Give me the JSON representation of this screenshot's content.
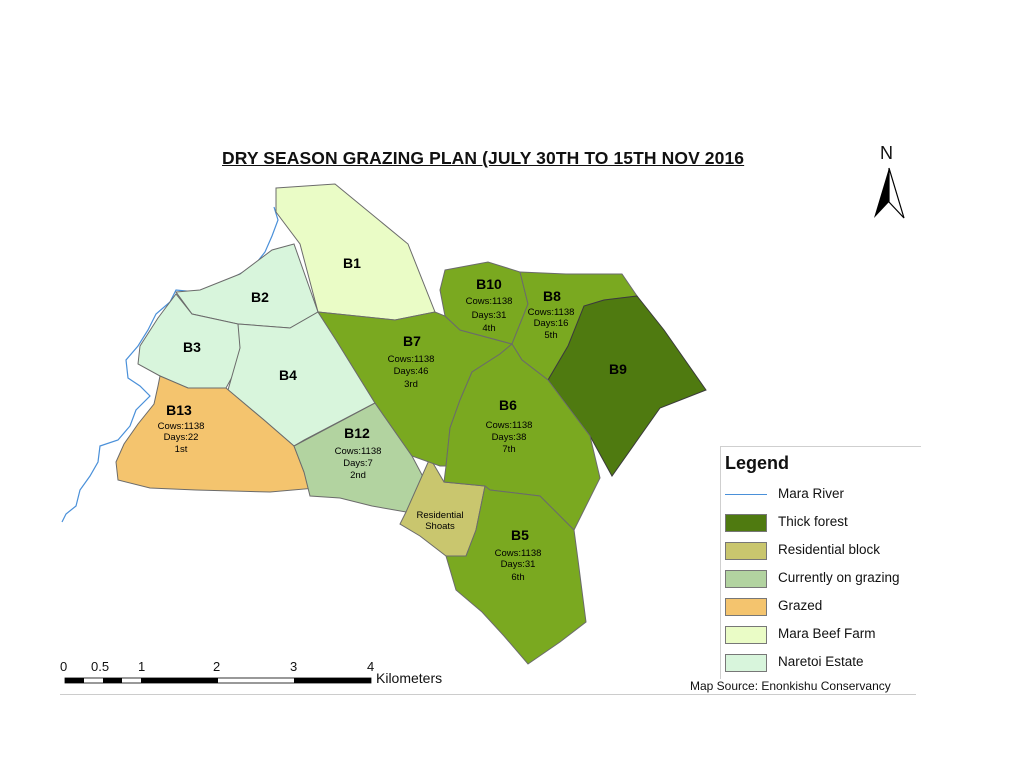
{
  "map": {
    "title": "DRY SEASON GRAZING PLAN (JULY 30TH TO 15TH NOV 2016",
    "north_label": "N",
    "blocks": [
      {
        "code": "B1",
        "category": "Mara Beef Farm"
      },
      {
        "code": "B2",
        "category": "Naretoi Estate"
      },
      {
        "code": "B3",
        "category": "Naretoi Estate"
      },
      {
        "code": "B4",
        "category": "Naretoi Estate"
      },
      {
        "code": "B5",
        "cows": "Cows:1138",
        "days": "Days:31",
        "order": "6th"
      },
      {
        "code": "B6",
        "cows": "Cows:1138",
        "days": "Days:38",
        "order": "7th"
      },
      {
        "code": "B7",
        "cows": "Cows:1138",
        "days": "Days:46",
        "order": "3rd"
      },
      {
        "code": "B8",
        "cows": "Cows:1138",
        "days": "Days:16",
        "order": "5th"
      },
      {
        "code": "B9",
        "category": "Thick forest"
      },
      {
        "code": "B10",
        "cows": "Cows:1138",
        "days": "Days:31",
        "order": "4th"
      },
      {
        "code": "B12",
        "cows": "Cows:1138",
        "days": "Days:7",
        "order": "2nd",
        "category": "Currently on grazing"
      },
      {
        "code": "B13",
        "cows": "Cows:1138",
        "days": "Days:22",
        "order": "1st",
        "category": "Grazed"
      }
    ],
    "residential": {
      "line1": "Residential",
      "line2": "Shoats"
    }
  },
  "legend": {
    "title": "Legend",
    "items": [
      {
        "label": "Mara River",
        "kind": "line",
        "color": "#4a90d9"
      },
      {
        "label": "Thick forest",
        "kind": "fill",
        "color": "#4f7a10"
      },
      {
        "label": "Residential block",
        "kind": "fill",
        "color": "#c9c66e"
      },
      {
        "label": "Currently on grazing",
        "kind": "fill",
        "color": "#b2d3a0"
      },
      {
        "label": "Grazed",
        "kind": "fill",
        "color": "#f4c46e"
      },
      {
        "label": "Mara Beef Farm",
        "kind": "fill",
        "color": "#eafcc6"
      },
      {
        "label": "Naretoi Estate",
        "kind": "fill",
        "color": "#d8f5dc"
      }
    ]
  },
  "colors": {
    "planned_grazing": "#7aa920"
  },
  "scale": {
    "ticks": [
      "0",
      "0.5",
      "1",
      "2",
      "3",
      "4"
    ],
    "unit": "Kilometers"
  },
  "source": "Map Source: Enonkishu Conservancy"
}
